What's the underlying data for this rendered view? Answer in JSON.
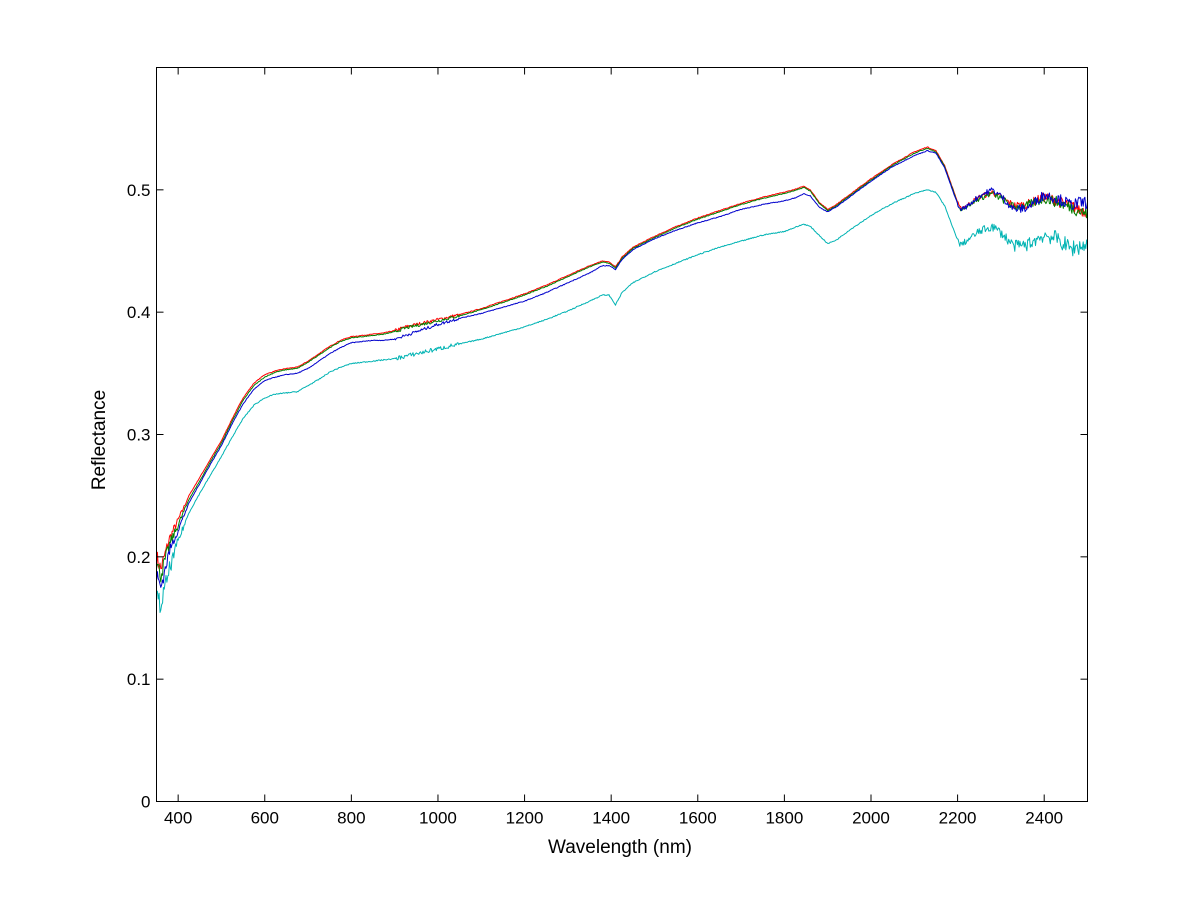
{
  "chart_data": {
    "type": "line",
    "title": "",
    "xlabel": "Wavelength (nm)",
    "ylabel": "Reflectance",
    "xlim": [
      350,
      2500
    ],
    "ylim": [
      0,
      0.6
    ],
    "xticks": [
      400,
      600,
      800,
      1000,
      1200,
      1400,
      1600,
      1800,
      2000,
      2200,
      2400
    ],
    "yticks": [
      0,
      0.1,
      0.2,
      0.3,
      0.4,
      0.5
    ],
    "xtick_labels": [
      "400",
      "600",
      "800",
      "1000",
      "1200",
      "1400",
      "1600",
      "1800",
      "2000",
      "2200",
      "2400"
    ],
    "ytick_labels": [
      "0",
      "0.1",
      "0.2",
      "0.3",
      "0.4",
      "0.5"
    ],
    "grid": false,
    "legend": "none",
    "x": [
      350,
      360,
      380,
      400,
      425,
      450,
      475,
      500,
      525,
      550,
      575,
      600,
      625,
      650,
      675,
      700,
      725,
      750,
      775,
      800,
      825,
      850,
      875,
      900,
      925,
      950,
      975,
      1000,
      1050,
      1100,
      1150,
      1200,
      1250,
      1300,
      1350,
      1380,
      1395,
      1410,
      1425,
      1450,
      1500,
      1550,
      1600,
      1650,
      1700,
      1750,
      1800,
      1830,
      1845,
      1860,
      1880,
      1900,
      1920,
      1950,
      2000,
      2050,
      2100,
      2130,
      2150,
      2170,
      2190,
      2205,
      2220,
      2250,
      2280,
      2300,
      2330,
      2360,
      2400,
      2430,
      2460,
      2500
    ],
    "series": [
      {
        "color": "#ff0000",
        "values": [
          0.2,
          0.19,
          0.215,
          0.23,
          0.25,
          0.265,
          0.28,
          0.295,
          0.313,
          0.33,
          0.342,
          0.349,
          0.352,
          0.354,
          0.355,
          0.36,
          0.366,
          0.372,
          0.377,
          0.38,
          0.381,
          0.382,
          0.383,
          0.385,
          0.388,
          0.39,
          0.392,
          0.394,
          0.398,
          0.403,
          0.409,
          0.415,
          0.422,
          0.43,
          0.438,
          0.442,
          0.441,
          0.437,
          0.445,
          0.453,
          0.462,
          0.47,
          0.477,
          0.483,
          0.489,
          0.494,
          0.498,
          0.501,
          0.503,
          0.5,
          0.49,
          0.484,
          0.488,
          0.496,
          0.509,
          0.521,
          0.531,
          0.535,
          0.532,
          0.52,
          0.5,
          0.485,
          0.487,
          0.494,
          0.498,
          0.494,
          0.487,
          0.488,
          0.494,
          0.491,
          0.487,
          0.482
        ]
      },
      {
        "color": "#008000",
        "values": [
          0.195,
          0.185,
          0.21,
          0.226,
          0.247,
          0.262,
          0.278,
          0.293,
          0.311,
          0.328,
          0.34,
          0.347,
          0.351,
          0.353,
          0.354,
          0.359,
          0.365,
          0.371,
          0.376,
          0.379,
          0.38,
          0.381,
          0.382,
          0.384,
          0.387,
          0.389,
          0.391,
          0.393,
          0.397,
          0.402,
          0.408,
          0.414,
          0.421,
          0.429,
          0.437,
          0.441,
          0.44,
          0.436,
          0.444,
          0.452,
          0.461,
          0.469,
          0.476,
          0.482,
          0.488,
          0.493,
          0.497,
          0.5,
          0.502,
          0.499,
          0.489,
          0.483,
          0.487,
          0.495,
          0.508,
          0.52,
          0.53,
          0.534,
          0.531,
          0.519,
          0.499,
          0.484,
          0.486,
          0.493,
          0.497,
          0.493,
          0.486,
          0.487,
          0.493,
          0.49,
          0.486,
          0.48
        ]
      },
      {
        "color": "#0000cc",
        "values": [
          0.185,
          0.175,
          0.205,
          0.222,
          0.244,
          0.26,
          0.276,
          0.291,
          0.309,
          0.325,
          0.337,
          0.344,
          0.347,
          0.349,
          0.35,
          0.354,
          0.36,
          0.366,
          0.371,
          0.375,
          0.376,
          0.377,
          0.377,
          0.378,
          0.381,
          0.384,
          0.387,
          0.39,
          0.395,
          0.399,
          0.404,
          0.409,
          0.416,
          0.424,
          0.432,
          0.438,
          0.438,
          0.435,
          0.443,
          0.451,
          0.46,
          0.467,
          0.473,
          0.478,
          0.484,
          0.488,
          0.491,
          0.494,
          0.497,
          0.495,
          0.486,
          0.482,
          0.486,
          0.494,
          0.507,
          0.519,
          0.528,
          0.532,
          0.53,
          0.518,
          0.498,
          0.484,
          0.486,
          0.495,
          0.5,
          0.495,
          0.484,
          0.485,
          0.496,
          0.493,
          0.488,
          0.49
        ]
      },
      {
        "color": "#00b3b3",
        "values": [
          0.165,
          0.16,
          0.19,
          0.213,
          0.236,
          0.252,
          0.267,
          0.282,
          0.298,
          0.313,
          0.324,
          0.33,
          0.333,
          0.334,
          0.335,
          0.34,
          0.345,
          0.351,
          0.355,
          0.358,
          0.359,
          0.36,
          0.361,
          0.362,
          0.364,
          0.366,
          0.368,
          0.37,
          0.374,
          0.378,
          0.383,
          0.388,
          0.394,
          0.401,
          0.409,
          0.414,
          0.414,
          0.406,
          0.416,
          0.424,
          0.433,
          0.44,
          0.447,
          0.453,
          0.458,
          0.463,
          0.466,
          0.47,
          0.472,
          0.47,
          0.463,
          0.456,
          0.459,
          0.467,
          0.479,
          0.489,
          0.497,
          0.5,
          0.498,
          0.487,
          0.468,
          0.455,
          0.458,
          0.466,
          0.47,
          0.465,
          0.454,
          0.455,
          0.463,
          0.46,
          0.452,
          0.455
        ]
      }
    ]
  }
}
